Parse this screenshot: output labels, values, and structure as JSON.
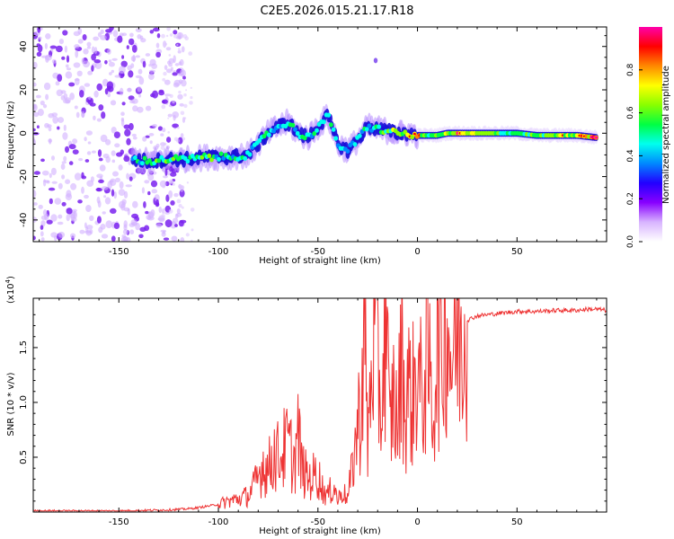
{
  "title": "C2E5.2026.015.21.17.R18",
  "chart_data": [
    {
      "type": "heatmap",
      "title": "C2E5.2026.015.21.17.R18",
      "xlabel": "Height of straight line (km)",
      "ylabel": "Frequency (Hz)",
      "xlim": [
        -193,
        95
      ],
      "ylim": [
        -50,
        49
      ],
      "x_ticks": [
        -150,
        -100,
        -50,
        0,
        50
      ],
      "y_ticks": [
        -40,
        -20,
        0,
        20,
        40
      ],
      "colorbar": {
        "label": "Normalized spectral amplitude",
        "range": [
          0,
          1
        ],
        "ticks": [
          0.0,
          0.2,
          0.4,
          0.6,
          0.8
        ],
        "colors": [
          "#ffffff",
          "#d8b4ff",
          "#8800ff",
          "#2200ff",
          "#0088ff",
          "#00ffee",
          "#00ff44",
          "#88ff00",
          "#ffff00",
          "#ff8800",
          "#ff0000",
          "#ff00aa"
        ]
      },
      "noise_region_km": [
        -193,
        -125
      ],
      "ridge": [
        {
          "x": -143,
          "y": -12,
          "amp": 0.45
        },
        {
          "x": -135,
          "y": -13,
          "amp": 0.55
        },
        {
          "x": -125,
          "y": -12,
          "amp": 0.6
        },
        {
          "x": -115,
          "y": -12,
          "amp": 0.55
        },
        {
          "x": -105,
          "y": -11,
          "amp": 0.55
        },
        {
          "x": -95,
          "y": -11,
          "amp": 0.5
        },
        {
          "x": -85,
          "y": -10,
          "amp": 0.5
        },
        {
          "x": -80,
          "y": -5,
          "amp": 0.45
        },
        {
          "x": -75,
          "y": 0,
          "amp": 0.5
        },
        {
          "x": -70,
          "y": 3,
          "amp": 0.45
        },
        {
          "x": -65,
          "y": 5,
          "amp": 0.45
        },
        {
          "x": -60,
          "y": 0,
          "amp": 0.5
        },
        {
          "x": -55,
          "y": -2,
          "amp": 0.45
        },
        {
          "x": -50,
          "y": 3,
          "amp": 0.55
        },
        {
          "x": -45,
          "y": 8,
          "amp": 0.5
        },
        {
          "x": -40,
          "y": -5,
          "amp": 0.45
        },
        {
          "x": -35,
          "y": -8,
          "amp": 0.4
        },
        {
          "x": -30,
          "y": -3,
          "amp": 0.5
        },
        {
          "x": -25,
          "y": 3,
          "amp": 0.5
        },
        {
          "x": -20,
          "y": 2,
          "amp": 0.55
        },
        {
          "x": -15,
          "y": 1,
          "amp": 0.6
        },
        {
          "x": -10,
          "y": 0,
          "amp": 0.65
        },
        {
          "x": -5,
          "y": 0,
          "amp": 0.7
        },
        {
          "x": 0,
          "y": -1,
          "amp": 0.75
        },
        {
          "x": 5,
          "y": -1,
          "amp": 0.6
        },
        {
          "x": 10,
          "y": -1,
          "amp": 0.6
        },
        {
          "x": 15,
          "y": 0,
          "amp": 0.7
        },
        {
          "x": 20,
          "y": 0,
          "amp": 0.75
        },
        {
          "x": 30,
          "y": 0,
          "amp": 0.65
        },
        {
          "x": 40,
          "y": 0,
          "amp": 0.6
        },
        {
          "x": 50,
          "y": 0,
          "amp": 0.6
        },
        {
          "x": 60,
          "y": -1,
          "amp": 0.6
        },
        {
          "x": 70,
          "y": -1,
          "amp": 0.65
        },
        {
          "x": 80,
          "y": -1,
          "amp": 0.7
        },
        {
          "x": 90,
          "y": -2,
          "amp": 0.95
        }
      ]
    },
    {
      "type": "line",
      "xlabel": "Height of straight line (km)",
      "ylabel": "SNR (10 * v/v)",
      "y_multiplier": "(x10",
      "y_multiplier_exp": "4",
      "xlim": [
        -193,
        95
      ],
      "ylim": [
        0,
        1.95
      ],
      "x_ticks": [
        -150,
        -100,
        -50,
        0,
        50
      ],
      "y_ticks": [
        0.5,
        1.0,
        1.5
      ],
      "color": "#ee3333",
      "series": [
        {
          "x": [
            -193,
            -150,
            -125,
            -115,
            -110,
            -100,
            -95,
            -90,
            -85,
            -80,
            -78,
            -75,
            -72,
            -70,
            -65,
            -62,
            -60,
            -58,
            -55,
            -50,
            -48,
            -45,
            -42,
            -40,
            -38,
            -35,
            -32,
            -30,
            -28,
            -27,
            -25,
            -22,
            -20,
            -18,
            -16,
            -14,
            -12,
            -10,
            -8,
            -6,
            -5,
            -3,
            0,
            2,
            5,
            8,
            10,
            12,
            14,
            17,
            20,
            25,
            30,
            35,
            40,
            45,
            50,
            55,
            60,
            70,
            80,
            85,
            90,
            95
          ],
          "y": [
            0.01,
            0.01,
            0.02,
            0.03,
            0.04,
            0.07,
            0.1,
            0.12,
            0.15,
            0.3,
            0.45,
            0.38,
            0.55,
            0.5,
            0.62,
            0.45,
            0.7,
            0.4,
            0.3,
            0.35,
            0.22,
            0.15,
            0.25,
            0.1,
            0.2,
            0.12,
            0.5,
            0.8,
            1.0,
            1.9,
            0.6,
            1.7,
            1.3,
            0.9,
            1.9,
            0.7,
            1.1,
            0.75,
            1.5,
            0.85,
            1.2,
            1.0,
            1.3,
            1.05,
            1.4,
            0.9,
            1.65,
            1.3,
            1.9,
            1.4,
            1.6,
            1.75,
            1.79,
            1.8,
            1.81,
            1.82,
            1.83,
            1.83,
            1.83,
            1.84,
            1.84,
            1.85,
            1.85,
            1.84
          ]
        }
      ]
    }
  ]
}
